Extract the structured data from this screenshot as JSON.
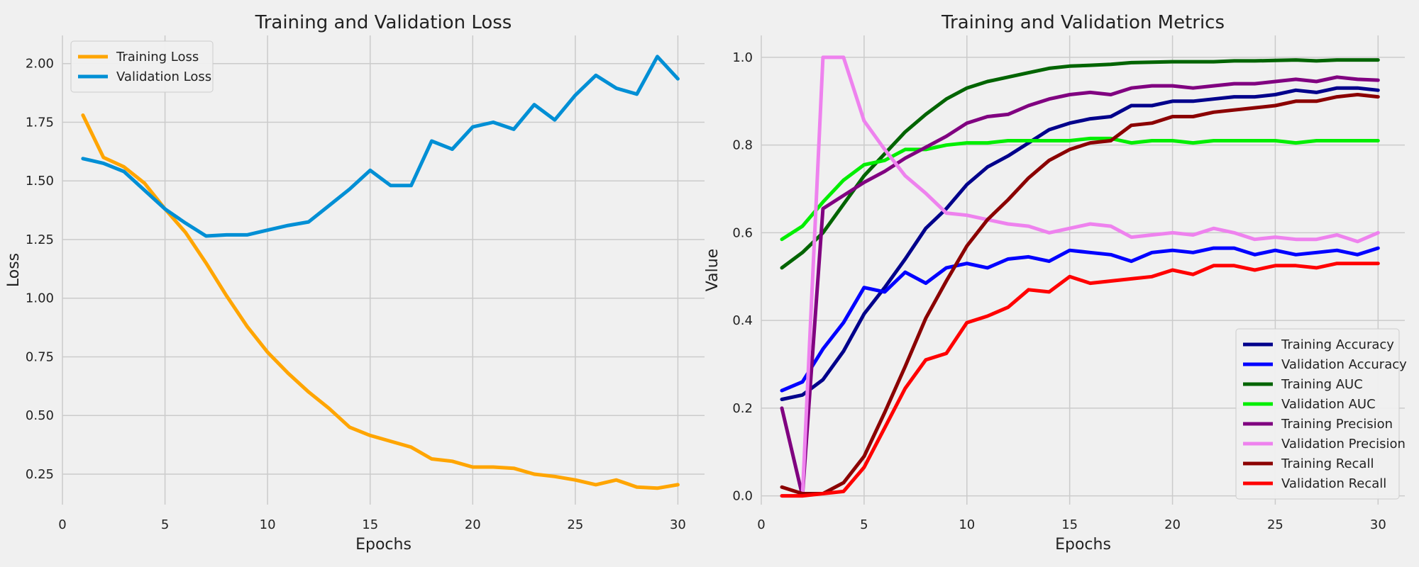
{
  "chart_data": [
    {
      "type": "line",
      "title": "Training and Validation Loss",
      "xlabel": "Epochs",
      "ylabel": "Loss",
      "xlim": [
        0,
        31.3
      ],
      "ylim": [
        0.12,
        2.12
      ],
      "xticks": [
        0,
        5,
        10,
        15,
        20,
        25,
        30
      ],
      "yticks": [
        0.25,
        0.5,
        0.75,
        1.0,
        1.25,
        1.5,
        1.75,
        2.0
      ],
      "ytick_labels": [
        "0.25",
        "0.50",
        "0.75",
        "1.00",
        "1.25",
        "1.50",
        "1.75",
        "2.00"
      ],
      "grid": true,
      "legend_position": "top-left",
      "x": [
        1,
        2,
        3,
        4,
        5,
        6,
        7,
        8,
        9,
        10,
        11,
        12,
        13,
        14,
        15,
        16,
        17,
        18,
        19,
        20,
        21,
        22,
        23,
        24,
        25,
        26,
        27,
        28,
        29,
        30
      ],
      "series": [
        {
          "name": "Training Loss",
          "color": "#ffa500",
          "values": [
            1.78,
            1.6,
            1.56,
            1.49,
            1.38,
            1.28,
            1.15,
            1.01,
            0.88,
            0.77,
            0.68,
            0.6,
            0.53,
            0.45,
            0.415,
            0.39,
            0.365,
            0.315,
            0.305,
            0.28,
            0.28,
            0.275,
            0.25,
            0.24,
            0.225,
            0.205,
            0.225,
            0.195,
            0.19,
            0.205
          ]
        },
        {
          "name": "Validation Loss",
          "color": "#008fd5",
          "values": [
            1.595,
            1.575,
            1.54,
            1.46,
            1.38,
            1.32,
            1.265,
            1.27,
            1.27,
            1.29,
            1.31,
            1.325,
            1.395,
            1.465,
            1.545,
            1.48,
            1.48,
            1.67,
            1.635,
            1.73,
            1.75,
            1.72,
            1.825,
            1.76,
            1.865,
            1.95,
            1.895,
            1.87,
            2.03,
            1.935
          ]
        }
      ]
    },
    {
      "type": "line",
      "title": "Training and Validation Metrics",
      "xlabel": "Epochs",
      "ylabel": "Value",
      "xlim": [
        0,
        31.3
      ],
      "ylim": [
        -0.02,
        1.05
      ],
      "xticks": [
        0,
        5,
        10,
        15,
        20,
        25,
        30
      ],
      "yticks": [
        0.0,
        0.2,
        0.4,
        0.6,
        0.8,
        1.0
      ],
      "ytick_labels": [
        "0.0",
        "0.2",
        "0.4",
        "0.6",
        "0.8",
        "1.0"
      ],
      "grid": true,
      "legend_position": "bottom-right",
      "x": [
        1,
        2,
        3,
        4,
        5,
        6,
        7,
        8,
        9,
        10,
        11,
        12,
        13,
        14,
        15,
        16,
        17,
        18,
        19,
        20,
        21,
        22,
        23,
        24,
        25,
        26,
        27,
        28,
        29,
        30
      ],
      "series": [
        {
          "name": "Training Accuracy",
          "color": "#00008b",
          "values": [
            0.22,
            0.23,
            0.265,
            0.33,
            0.415,
            0.475,
            0.54,
            0.61,
            0.655,
            0.71,
            0.75,
            0.775,
            0.805,
            0.835,
            0.85,
            0.86,
            0.865,
            0.89,
            0.89,
            0.9,
            0.9,
            0.905,
            0.91,
            0.91,
            0.915,
            0.925,
            0.92,
            0.93,
            0.93,
            0.925
          ]
        },
        {
          "name": "Validation Accuracy",
          "color": "#0000ff",
          "values": [
            0.24,
            0.26,
            0.335,
            0.395,
            0.475,
            0.465,
            0.51,
            0.485,
            0.52,
            0.53,
            0.52,
            0.54,
            0.545,
            0.535,
            0.56,
            0.555,
            0.55,
            0.535,
            0.555,
            0.56,
            0.555,
            0.565,
            0.565,
            0.55,
            0.56,
            0.55,
            0.555,
            0.56,
            0.55,
            0.565
          ]
        },
        {
          "name": "Training AUC",
          "color": "#006400",
          "values": [
            0.52,
            0.555,
            0.6,
            0.665,
            0.73,
            0.78,
            0.83,
            0.87,
            0.905,
            0.93,
            0.945,
            0.955,
            0.965,
            0.975,
            0.98,
            0.982,
            0.984,
            0.988,
            0.989,
            0.99,
            0.99,
            0.99,
            0.992,
            0.992,
            0.993,
            0.994,
            0.992,
            0.994,
            0.994,
            0.994
          ]
        },
        {
          "name": "Validation AUC",
          "color": "#00ee00",
          "values": [
            0.585,
            0.615,
            0.67,
            0.72,
            0.755,
            0.765,
            0.79,
            0.79,
            0.8,
            0.805,
            0.805,
            0.81,
            0.81,
            0.81,
            0.81,
            0.815,
            0.815,
            0.805,
            0.81,
            0.81,
            0.805,
            0.81,
            0.81,
            0.81,
            0.81,
            0.805,
            0.81,
            0.81,
            0.81,
            0.81
          ]
        },
        {
          "name": "Training Precision",
          "color": "#800080",
          "values": [
            0.2,
            0.0,
            0.655,
            0.685,
            0.715,
            0.74,
            0.77,
            0.795,
            0.82,
            0.85,
            0.865,
            0.87,
            0.89,
            0.905,
            0.915,
            0.92,
            0.915,
            0.93,
            0.935,
            0.935,
            0.93,
            0.935,
            0.94,
            0.94,
            0.945,
            0.95,
            0.945,
            0.955,
            0.95,
            0.948
          ]
        },
        {
          "name": "Validation Precision",
          "color": "#ee82ee",
          "values": [
            0.0,
            0.0,
            1.0,
            1.0,
            0.855,
            0.79,
            0.73,
            0.69,
            0.645,
            0.64,
            0.63,
            0.62,
            0.615,
            0.6,
            0.61,
            0.62,
            0.615,
            0.59,
            0.595,
            0.6,
            0.595,
            0.61,
            0.6,
            0.585,
            0.59,
            0.585,
            0.585,
            0.595,
            0.58,
            0.6
          ]
        },
        {
          "name": "Training Recall",
          "color": "#8b0000",
          "values": [
            0.02,
            0.005,
            0.005,
            0.03,
            0.09,
            0.19,
            0.295,
            0.405,
            0.49,
            0.57,
            0.63,
            0.675,
            0.725,
            0.765,
            0.79,
            0.805,
            0.81,
            0.845,
            0.85,
            0.865,
            0.865,
            0.875,
            0.88,
            0.885,
            0.89,
            0.9,
            0.9,
            0.91,
            0.915,
            0.91
          ]
        },
        {
          "name": "Validation Recall",
          "color": "#ff0000",
          "values": [
            0.0,
            0.0,
            0.005,
            0.01,
            0.065,
            0.155,
            0.245,
            0.31,
            0.325,
            0.395,
            0.41,
            0.43,
            0.47,
            0.465,
            0.5,
            0.485,
            0.49,
            0.495,
            0.5,
            0.515,
            0.505,
            0.525,
            0.525,
            0.515,
            0.525,
            0.525,
            0.52,
            0.53,
            0.53,
            0.53
          ]
        }
      ]
    }
  ]
}
